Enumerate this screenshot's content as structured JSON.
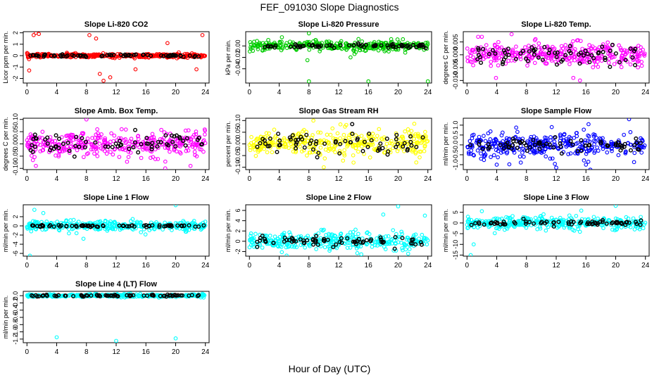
{
  "figure": {
    "title": "FEF_091030  Slope Diagnostics",
    "xlabel": "Hour of Day (UTC)"
  },
  "chart_data": [
    {
      "type": "scatter",
      "title": "Slope Li-820 CO2",
      "ylabel": "Licor ppm per min.",
      "xlim": [
        -0.5,
        24.5
      ],
      "ylim": [
        -2.4,
        2.1
      ],
      "xticks": [
        0,
        4,
        8,
        12,
        16,
        20,
        24
      ],
      "yticks": [
        -2,
        -1,
        0,
        1,
        2
      ],
      "ytick_labels": [
        "-2",
        "-1",
        "0",
        "1",
        "2"
      ],
      "color": "#ff0000",
      "scatter_spread": 0.15,
      "outliers": [
        [
          0.3,
          -1.3
        ],
        [
          0.9,
          1.8
        ],
        [
          1.2,
          2.0
        ],
        [
          1.6,
          1.9
        ],
        [
          8.4,
          1.8
        ],
        [
          9.8,
          -1.6
        ],
        [
          10.3,
          -2.2
        ],
        [
          11.2,
          -1.9
        ],
        [
          9.3,
          1.5
        ],
        [
          14.6,
          -1.2
        ],
        [
          18.9,
          1.1
        ],
        [
          23.6,
          1.8
        ],
        [
          22.8,
          -1.2
        ]
      ],
      "black_spread": 0.08
    },
    {
      "type": "scatter",
      "title": "Slope Li-820 Pressure",
      "ylabel": "kPa per min.",
      "xlim": [
        -0.5,
        24.5
      ],
      "ylim": [
        -0.065,
        0.025
      ],
      "xticks": [
        0,
        4,
        8,
        12,
        16,
        20,
        24
      ],
      "yticks": [
        -0.04,
        -0.02,
        0.0
      ],
      "ytick_labels": [
        "-0.04",
        "-0.02",
        "0.00"
      ],
      "color": "#00cc00",
      "scatter_spread": 0.008,
      "outliers": [
        [
          8.0,
          0.022
        ],
        [
          8.0,
          -0.062
        ],
        [
          16.0,
          -0.062
        ],
        [
          24.0,
          -0.062
        ],
        [
          7.8,
          -0.025
        ],
        [
          13.6,
          -0.02
        ]
      ],
      "black_spread": 0.003
    },
    {
      "type": "scatter",
      "title": "Slope Li-820 Temp.",
      "ylabel": "degrees C per min.",
      "xlim": [
        -0.5,
        24.5
      ],
      "ylim": [
        -0.011,
        0.009
      ],
      "xticks": [
        0,
        4,
        8,
        12,
        16,
        20,
        24
      ],
      "yticks": [
        -0.01,
        -0.005,
        0.0,
        0.005
      ],
      "ytick_labels": [
        "-0.010",
        "-0.005",
        "0.000",
        "0.005"
      ],
      "color": "#ff00ff",
      "scatter_spread": 0.004,
      "outliers": [
        [
          1.5,
          0.007
        ],
        [
          2.0,
          0.007
        ],
        [
          3.9,
          -0.009
        ],
        [
          6.0,
          0.008
        ],
        [
          14.3,
          -0.009
        ],
        [
          15.2,
          -0.01
        ]
      ],
      "black_spread": 0.003
    },
    {
      "type": "scatter",
      "title": "Slope Amb. Box Temp.",
      "ylabel": "degrees C per min.",
      "xlim": [
        -0.5,
        24.5
      ],
      "ylim": [
        -0.105,
        0.105
      ],
      "xticks": [
        0,
        4,
        8,
        12,
        16,
        20,
        24
      ],
      "yticks": [
        -0.1,
        -0.05,
        0.0,
        0.05,
        0.1
      ],
      "ytick_labels": [
        "-0.10",
        "-0.05",
        "0.00",
        "0.05",
        "0.10"
      ],
      "color": "#ff00ff",
      "scatter_spread": 0.045,
      "outliers": [
        [
          8.0,
          0.1
        ],
        [
          1.2,
          -0.09
        ],
        [
          18.6,
          -0.1
        ],
        [
          22.0,
          -0.09
        ]
      ],
      "black_spread": 0.035
    },
    {
      "type": "scatter",
      "title": "Slope Gas Stream RH",
      "ylabel": "percent per min.",
      "xlim": [
        -0.5,
        24.5
      ],
      "ylim": [
        -0.11,
        0.11
      ],
      "xticks": [
        0,
        4,
        8,
        12,
        16,
        20,
        24
      ],
      "yticks": [
        -0.1,
        -0.05,
        0.0,
        0.05,
        0.1
      ],
      "ytick_labels": [
        "-0.10",
        "-0.05",
        "0.00",
        "0.05",
        "0.10"
      ],
      "color": "#ffff00",
      "scatter_spread": 0.05,
      "outliers": [
        [
          8.6,
          0.1
        ],
        [
          10.0,
          -0.1
        ],
        [
          14.0,
          -0.08
        ]
      ],
      "black_spread": 0.045
    },
    {
      "type": "scatter",
      "title": "Slope Sample Flow",
      "ylabel": "ml/min per min.",
      "xlim": [
        -0.5,
        24.5
      ],
      "ylim": [
        -1.25,
        1.35
      ],
      "xticks": [
        0,
        4,
        8,
        12,
        16,
        20,
        24
      ],
      "yticks": [
        -1.0,
        -0.5,
        0.0,
        0.5,
        1.0
      ],
      "ytick_labels": [
        "-1.0",
        "-0.5",
        "0.0",
        "0.5",
        "1.0"
      ],
      "color": "#0000ff",
      "scatter_spread": 0.55,
      "outliers": [
        [
          4.0,
          -1.0
        ],
        [
          12.0,
          -1.15
        ],
        [
          16.0,
          -1.0
        ],
        [
          21.8,
          1.3
        ],
        [
          11.4,
          0.9
        ]
      ],
      "black_spread": 0.35
    },
    {
      "type": "scatter",
      "title": "Slope Line 1 Flow",
      "ylabel": "ml/min per min.",
      "xlim": [
        -0.5,
        24.5
      ],
      "ylim": [
        -6.6,
        4.6
      ],
      "xticks": [
        0,
        4,
        8,
        12,
        16,
        20,
        24
      ],
      "yticks": [
        -6,
        -4,
        -2,
        0,
        2
      ],
      "ytick_labels": [
        "-6",
        "-4",
        "-2",
        "0",
        "2"
      ],
      "color": "#00ffff",
      "scatter_spread": 0.9,
      "outliers": [
        [
          0.4,
          -6.5
        ],
        [
          20.0,
          4.5
        ],
        [
          1.0,
          3.5
        ],
        [
          2.2,
          2.8
        ],
        [
          7.6,
          -2.8
        ]
      ],
      "black_spread": 0.2
    },
    {
      "type": "scatter",
      "title": "Slope Line 2 Flow",
      "ylabel": "ml/min per min.",
      "xlim": [
        -0.5,
        24.5
      ],
      "ylim": [
        -2.9,
        7.1
      ],
      "xticks": [
        0,
        4,
        8,
        12,
        16,
        20,
        24
      ],
      "yticks": [
        -2,
        0,
        2,
        4,
        6
      ],
      "ytick_labels": [
        "-2",
        "0",
        "2",
        "4",
        "6"
      ],
      "color": "#00ffff",
      "scatter_spread": 1.5,
      "outliers": [
        [
          20.0,
          6.8
        ],
        [
          5.0,
          -2.8
        ],
        [
          18.0,
          5.2
        ],
        [
          23.6,
          5.0
        ]
      ],
      "black_spread": 0.8
    },
    {
      "type": "scatter",
      "title": "Slope Line 3 Flow",
      "ylabel": "ml/min per min.",
      "xlim": [
        -0.5,
        24.5
      ],
      "ylim": [
        -15.5,
        8.5
      ],
      "xticks": [
        0,
        4,
        8,
        12,
        16,
        20,
        24
      ],
      "yticks": [
        -15,
        -10,
        -5,
        0,
        5
      ],
      "ytick_labels": [
        "-15",
        "-10",
        "-5",
        "0",
        "5"
      ],
      "color": "#00ffff",
      "scatter_spread": 2.6,
      "outliers": [
        [
          0.5,
          -15.0
        ],
        [
          20.0,
          8.0
        ],
        [
          0.9,
          -10.0
        ],
        [
          2.0,
          5.5
        ]
      ],
      "black_spread": 1.0
    },
    {
      "type": "scatter",
      "title": "Slope Line 4 (LT) Flow",
      "ylabel": "ml/min per min.",
      "xlim": [
        -0.5,
        24.5
      ],
      "ylim": [
        -1.3,
        0.12
      ],
      "xticks": [
        0,
        4,
        8,
        12,
        16,
        20,
        24
      ],
      "yticks": [
        -1.2,
        -1.0,
        -0.8,
        -0.6,
        -0.4,
        -0.2,
        0.0
      ],
      "ytick_labels": [
        "-1.2",
        "-1.0",
        "-0.8",
        "-0.6",
        "-0.4",
        "-0.2",
        "0.0"
      ],
      "color": "#00ffff",
      "scatter_spread": 0.035,
      "outliers": [
        [
          4.0,
          -1.15
        ],
        [
          12.0,
          -1.25
        ],
        [
          20.0,
          -1.18
        ]
      ],
      "black_spread": 0.02
    }
  ]
}
